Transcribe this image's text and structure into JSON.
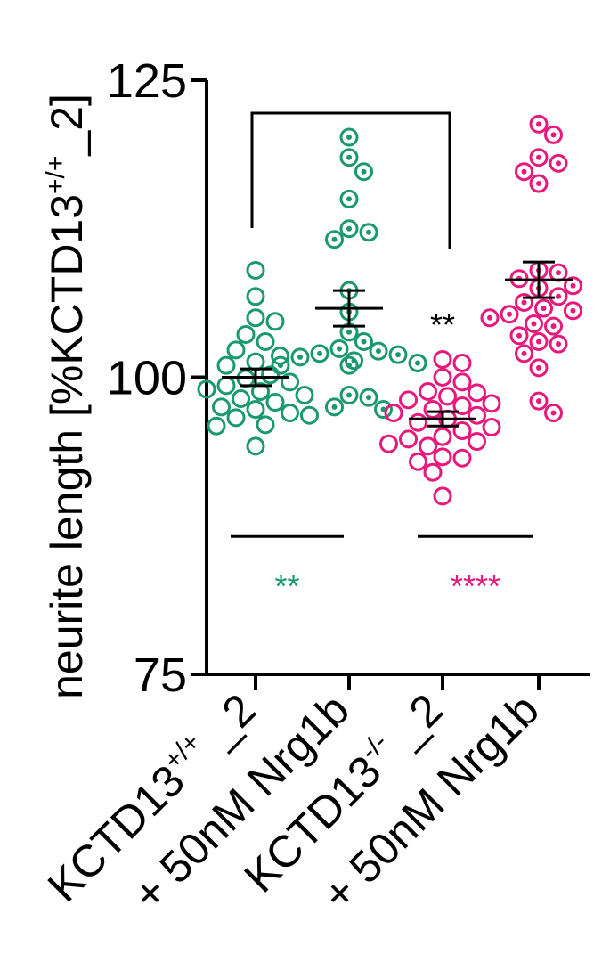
{
  "chart_data": {
    "type": "scatter",
    "ylabel_main": "neurite length [%KCTD13",
    "ylabel_sup": "+/+",
    "ylabel_end": "_2]",
    "ylim": [
      75,
      125
    ],
    "yticks": [
      75,
      100,
      125
    ],
    "colors": {
      "wildtype": "#1a9a6c",
      "knockout": "#e8187c",
      "axis": "#000000"
    },
    "groups": [
      {
        "label_main": "KCTD13",
        "label_sup": "+/+",
        "label_end": " _2",
        "color": "#1a9a6c",
        "dotted": false,
        "mean": 100.0,
        "sem": 0.7,
        "values": [
          109.0,
          106.8,
          105.0,
          104.7,
          103.6,
          103.0,
          102.3,
          101.8,
          101.3,
          101.0,
          100.2,
          99.9,
          99.6,
          99.3,
          99.0,
          98.8,
          98.5,
          98.2,
          97.9,
          97.5,
          97.3,
          97.0,
          96.8,
          96.6,
          96.0,
          95.9,
          94.2
        ]
      },
      {
        "label_main": "+ 50nM Nrg1b",
        "label_sup": "",
        "label_end": "",
        "color": "#1a9a6c",
        "dotted": true,
        "mean": 105.8,
        "sem": 1.5,
        "values": [
          120.2,
          118.5,
          117.3,
          115.0,
          112.5,
          112.2,
          111.6,
          107.3,
          105.5,
          103.8,
          103.0,
          102.4,
          102.2,
          102.0,
          101.9,
          101.7,
          101.4,
          101.2,
          101.0,
          101.0,
          98.5,
          98.3,
          97.5,
          97.3
        ]
      },
      {
        "label_main": "KCTD13",
        "label_sup": "-/-",
        "label_end": " _2",
        "color": "#e8187c",
        "dotted": false,
        "mean": 96.5,
        "sem": 0.6,
        "values": [
          101.5,
          101.2,
          100.0,
          99.6,
          98.8,
          98.7,
          98.4,
          98.1,
          97.8,
          97.6,
          97.3,
          97.0,
          96.8,
          96.5,
          96.2,
          95.8,
          95.5,
          95.0,
          94.8,
          94.6,
          94.4,
          94.2,
          93.3,
          93.2,
          92.9,
          92.0,
          90.0
        ]
      },
      {
        "label_main": "+ 50nM Nrg1b",
        "label_sup": "",
        "label_end": "",
        "color": "#e8187c",
        "dotted": true,
        "mean": 108.2,
        "sem": 1.5,
        "values": [
          121.3,
          120.4,
          118.5,
          118.0,
          117.3,
          116.3,
          109.0,
          108.8,
          108.3,
          107.7,
          107.5,
          106.8,
          106.3,
          105.8,
          105.6,
          105.3,
          105.0,
          104.5,
          104.3,
          103.5,
          103.0,
          102.8,
          102.0,
          100.8,
          98.0,
          97.0
        ]
      }
    ],
    "bracket": {
      "from_group": 0,
      "to_group": 2,
      "label": ""
    },
    "annotations": [
      {
        "text": "**",
        "group": 2,
        "y": 105.0,
        "color": "#000000"
      },
      {
        "text": "**",
        "line_from": 0,
        "line_to": 1,
        "line_y": 86.6,
        "y": 83.0,
        "color": "#1a9a6c"
      },
      {
        "text": "****",
        "line_from": 2,
        "line_to": 3,
        "line_y": 86.6,
        "y": 83.0,
        "color": "#e8187c"
      }
    ]
  }
}
